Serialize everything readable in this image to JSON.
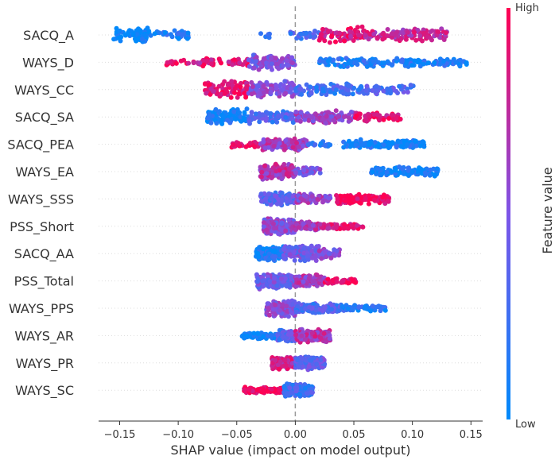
{
  "chart_data": {
    "type": "scatter",
    "subtype": "shap-beeswarm",
    "xlabel": "SHAP value (impact on model output)",
    "xlim": [
      -0.168,
      0.16
    ],
    "xticks": [
      -0.15,
      -0.1,
      -0.05,
      0.0,
      0.05,
      0.1,
      0.15
    ],
    "xtick_labels": [
      "−0.15",
      "−0.10",
      "−0.05",
      "0.00",
      "0.05",
      "0.10",
      "0.15"
    ],
    "zero_line": true,
    "features": [
      {
        "name": "SACQ_A",
        "min": -0.155,
        "max": 0.13,
        "segments": [
          [
            -0.155,
            -0.125,
            0.0,
            4
          ],
          [
            -0.125,
            -0.09,
            0.1,
            2
          ],
          [
            -0.03,
            -0.02,
            0.15,
            1
          ],
          [
            -0.005,
            0.02,
            0.3,
            2
          ],
          [
            0.02,
            0.06,
            0.85,
            4
          ],
          [
            0.06,
            0.13,
            0.75,
            3
          ]
        ]
      },
      {
        "name": "WAYS_D",
        "min": -0.11,
        "max": 0.147,
        "segments": [
          [
            -0.11,
            -0.085,
            0.95,
            1
          ],
          [
            -0.085,
            -0.04,
            0.85,
            2
          ],
          [
            -0.04,
            0.0,
            0.5,
            4
          ],
          [
            0.02,
            0.06,
            0.12,
            2
          ],
          [
            0.06,
            0.147,
            0.12,
            2
          ]
        ]
      },
      {
        "name": "WAYS_CC",
        "min": -0.078,
        "max": 0.102,
        "segments": [
          [
            -0.078,
            -0.04,
            0.9,
            4
          ],
          [
            -0.04,
            0.0,
            0.55,
            4
          ],
          [
            0.0,
            0.05,
            0.25,
            3
          ],
          [
            0.05,
            0.102,
            0.3,
            2
          ]
        ]
      },
      {
        "name": "SACQ_SA",
        "min": -0.075,
        "max": 0.09,
        "segments": [
          [
            -0.075,
            -0.04,
            0.05,
            4
          ],
          [
            -0.04,
            0.0,
            0.3,
            3
          ],
          [
            0.0,
            0.05,
            0.6,
            3
          ],
          [
            0.05,
            0.09,
            0.9,
            2
          ]
        ]
      },
      {
        "name": "SACQ_PEA",
        "min": -0.055,
        "max": 0.11,
        "segments": [
          [
            -0.055,
            -0.03,
            0.95,
            1
          ],
          [
            -0.03,
            0.01,
            0.65,
            3
          ],
          [
            0.01,
            0.03,
            0.2,
            1
          ],
          [
            0.04,
            0.11,
            0.08,
            2
          ]
        ]
      },
      {
        "name": "WAYS_EA",
        "min": -0.03,
        "max": 0.122,
        "segments": [
          [
            -0.03,
            0.0,
            0.7,
            4
          ],
          [
            0.0,
            0.022,
            0.5,
            2
          ],
          [
            0.065,
            0.122,
            0.05,
            2
          ]
        ]
      },
      {
        "name": "WAYS_SSS",
        "min": -0.03,
        "max": 0.08,
        "segments": [
          [
            -0.03,
            0.0,
            0.35,
            3
          ],
          [
            0.0,
            0.03,
            0.6,
            2
          ],
          [
            0.035,
            0.08,
            0.95,
            2
          ]
        ]
      },
      {
        "name": "PSS_Short",
        "min": -0.027,
        "max": 0.06,
        "segments": [
          [
            -0.027,
            0.0,
            0.55,
            6
          ],
          [
            0.0,
            0.02,
            0.7,
            2
          ],
          [
            0.02,
            0.06,
            0.85,
            1
          ]
        ]
      },
      {
        "name": "SACQ_AA",
        "min": -0.034,
        "max": 0.038,
        "segments": [
          [
            -0.034,
            -0.01,
            0.1,
            4
          ],
          [
            -0.01,
            0.02,
            0.45,
            4
          ],
          [
            0.02,
            0.038,
            0.55,
            2
          ]
        ]
      },
      {
        "name": "PSS_Total",
        "min": -0.033,
        "max": 0.052,
        "segments": [
          [
            -0.033,
            0.0,
            0.45,
            4
          ],
          [
            0.0,
            0.025,
            0.65,
            3
          ],
          [
            0.025,
            0.052,
            0.95,
            1
          ]
        ]
      },
      {
        "name": "WAYS_PPS",
        "min": -0.025,
        "max": 0.077,
        "segments": [
          [
            -0.025,
            0.0,
            0.55,
            4
          ],
          [
            0.0,
            0.04,
            0.3,
            2
          ],
          [
            0.04,
            0.077,
            0.15,
            1
          ]
        ]
      },
      {
        "name": "WAYS_AR",
        "min": -0.046,
        "max": 0.03,
        "segments": [
          [
            -0.046,
            -0.015,
            0.05,
            1
          ],
          [
            -0.015,
            0.0,
            0.35,
            3
          ],
          [
            0.0,
            0.03,
            0.7,
            3
          ]
        ]
      },
      {
        "name": "WAYS_PR",
        "min": -0.02,
        "max": 0.025,
        "segments": [
          [
            -0.02,
            0.0,
            0.8,
            3
          ],
          [
            0.0,
            0.025,
            0.4,
            3
          ]
        ]
      },
      {
        "name": "WAYS_SC",
        "min": -0.044,
        "max": 0.015,
        "segments": [
          [
            -0.044,
            -0.01,
            0.95,
            1
          ],
          [
            -0.01,
            0.015,
            0.25,
            3
          ]
        ]
      }
    ],
    "colorbar": {
      "label": "Feature value",
      "high_label": "High",
      "low_label": "Low",
      "low_color": "#008afb",
      "high_color": "#ff0052"
    },
    "point_count_per_feature": 320
  }
}
